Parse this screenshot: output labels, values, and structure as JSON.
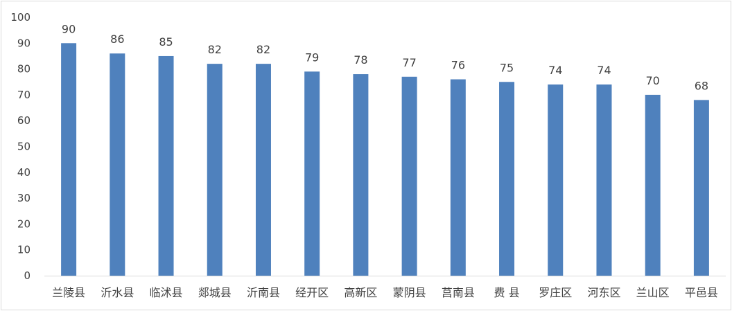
{
  "chart_data": {
    "type": "bar",
    "title": "",
    "xlabel": "",
    "ylabel": "",
    "categories": [
      "兰陵县",
      "沂水县",
      "临沭县",
      "郯城县",
      "沂南县",
      "经开区",
      "高新区",
      "蒙阴县",
      "莒南县",
      "费 县",
      "罗庄区",
      "河东区",
      "兰山区",
      "平邑县"
    ],
    "values": [
      90,
      86,
      85,
      82,
      82,
      79,
      78,
      77,
      76,
      75,
      74,
      74,
      70,
      68
    ],
    "ylim": [
      0,
      100
    ],
    "yticks": [
      0,
      10,
      20,
      30,
      40,
      50,
      60,
      70,
      80,
      90,
      100
    ],
    "bar_color": "#4f81bd",
    "data_labels": true,
    "grid": false,
    "legend": "none"
  }
}
